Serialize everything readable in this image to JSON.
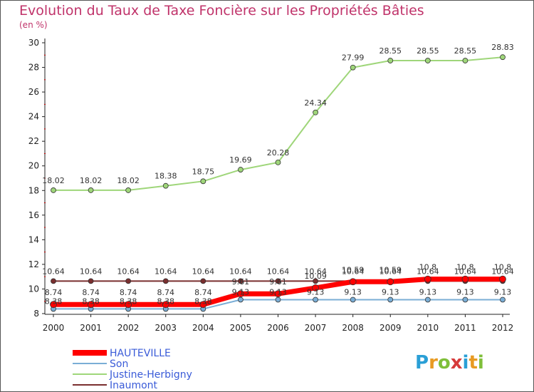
{
  "title": "Evolution du Taux de Taxe Foncière sur les Propriétés Bâties",
  "unit_label": "(en %)",
  "logo_text": "Proxiti",
  "colors": {
    "HAUTEVILLE": "#ff0000",
    "Son": "#7aaed6",
    "Justine-Herbigny": "#9fd67a",
    "Inaumont": "#7a2f2f"
  },
  "chart_data": {
    "type": "line",
    "x": [
      "2000",
      "2001",
      "2002",
      "2003",
      "2004",
      "2005",
      "2006",
      "2007",
      "2008",
      "2009",
      "2010",
      "2011",
      "2012"
    ],
    "ylim": [
      8,
      30
    ],
    "yticks": [
      8,
      10,
      12,
      14,
      16,
      18,
      20,
      22,
      24,
      26,
      28,
      30
    ],
    "grid": false,
    "legend": "bottom-left",
    "series": [
      {
        "name": "Justine-Herbigny",
        "values": [
          18.02,
          18.02,
          18.02,
          18.38,
          18.75,
          19.69,
          20.28,
          24.34,
          27.99,
          28.55,
          28.55,
          28.55,
          28.83
        ],
        "labels": [
          "18.02",
          "18.02",
          "18.02",
          "18.38",
          "18.75",
          "19.69",
          "20.28",
          "24.34",
          "27.99",
          "28.55",
          "28.55",
          "28.55",
          "28.83"
        ]
      },
      {
        "name": "Inaumont",
        "values": [
          10.64,
          10.64,
          10.64,
          10.64,
          10.64,
          10.64,
          10.64,
          10.64,
          10.64,
          10.64,
          10.64,
          10.64,
          10.64
        ],
        "labels": [
          "10.64",
          "10.64",
          "10.64",
          "10.64",
          "10.64",
          "10.64",
          "10.64",
          "10.64",
          "10.64",
          "10.64",
          "10.64",
          "10.64",
          "10.64"
        ]
      },
      {
        "name": "HAUTEVILLE",
        "values": [
          8.74,
          8.74,
          8.74,
          8.74,
          8.74,
          9.61,
          9.61,
          10.09,
          10.59,
          10.59,
          10.8,
          10.8,
          10.8
        ],
        "labels": [
          "8.74",
          "8.74",
          "8.74",
          "8.74",
          "8.74",
          "9.61",
          "9.61",
          "10.09",
          "10.59",
          "10.59",
          "10.8",
          "10.8",
          "10.8"
        ]
      },
      {
        "name": "Son",
        "values": [
          8.38,
          8.38,
          8.38,
          8.38,
          8.38,
          9.13,
          9.13,
          9.13,
          9.13,
          9.13,
          9.13,
          9.13,
          9.13
        ],
        "labels": [
          "8.38",
          "8.38",
          "8.38",
          "8.38",
          "8.38",
          "9.13",
          "9.13",
          "9.13",
          "9.13",
          "9.13",
          "9.13",
          "9.13",
          "9.13"
        ]
      }
    ]
  },
  "legend_items": [
    "HAUTEVILLE",
    "Son",
    "Justine-Herbigny",
    "Inaumont"
  ]
}
